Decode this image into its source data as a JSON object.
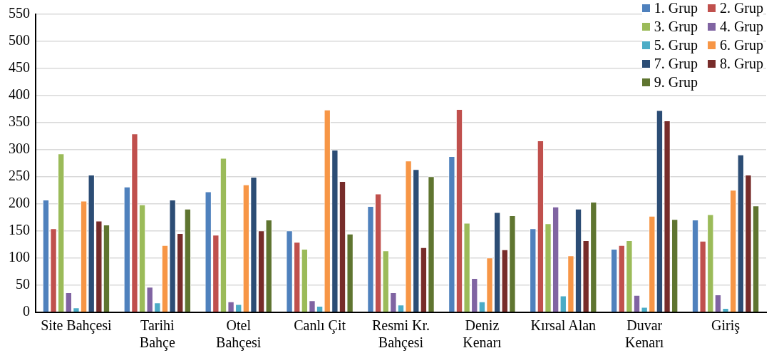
{
  "chart_data": {
    "type": "bar",
    "categories": [
      "Site Bahçesi",
      "Tarihi Bahçe",
      "Otel Bahçesi",
      "Canlı Çit",
      "Resmi Kr. Bahçesi",
      "Deniz Kenarı",
      "Kırsal Alan",
      "Duvar Kenarı",
      "Giriş"
    ],
    "series": [
      {
        "name": "1. Grup",
        "color": "#4f81bd",
        "values": [
          208,
          232,
          223,
          151,
          196,
          288,
          155,
          117,
          171
        ]
      },
      {
        "name": "2. Grup",
        "color": "#c0504d",
        "values": [
          155,
          330,
          143,
          130,
          219,
          375,
          317,
          124,
          132
        ]
      },
      {
        "name": "3. Grup",
        "color": "#9bbb59",
        "values": [
          293,
          199,
          285,
          117,
          114,
          165,
          164,
          133,
          181
        ]
      },
      {
        "name": "4. Grup",
        "color": "#8064a2",
        "values": [
          37,
          47,
          20,
          22,
          37,
          63,
          195,
          32,
          33
        ]
      },
      {
        "name": "5. Grup",
        "color": "#4bacc6",
        "values": [
          9,
          18,
          15,
          12,
          14,
          20,
          31,
          10,
          8
        ]
      },
      {
        "name": "6. Grup",
        "color": "#f79646",
        "values": [
          206,
          124,
          236,
          374,
          280,
          101,
          105,
          178,
          226
        ]
      },
      {
        "name": "7. Grup",
        "color": "#2c4d75",
        "values": [
          254,
          208,
          250,
          300,
          264,
          185,
          191,
          373,
          291
        ]
      },
      {
        "name": "8. Grup",
        "color": "#772c2a",
        "values": [
          169,
          146,
          151,
          242,
          120,
          116,
          133,
          354,
          254
        ]
      },
      {
        "name": "9. Grup",
        "color": "#5f7530",
        "values": [
          162,
          191,
          171,
          145,
          251,
          179,
          204,
          172,
          197
        ]
      }
    ],
    "ylim": [
      0,
      550
    ],
    "yticks": [
      0,
      50,
      100,
      150,
      200,
      250,
      300,
      350,
      400,
      450,
      500,
      550
    ],
    "grid": "y",
    "legend": "top right"
  }
}
